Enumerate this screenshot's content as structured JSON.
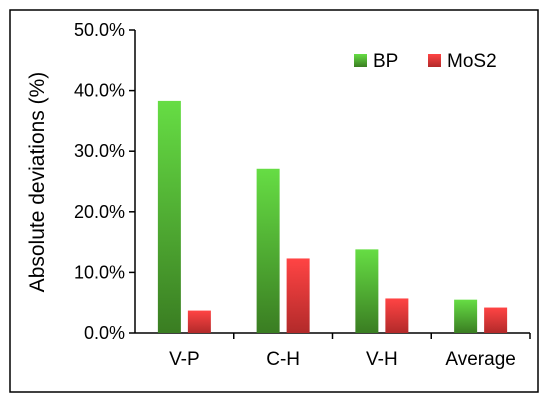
{
  "chart_data": {
    "type": "bar",
    "categories": [
      "V-P",
      "C-H",
      "V-H",
      "Average"
    ],
    "series": [
      {
        "name": "BP",
        "values": [
          0.383,
          0.271,
          0.138,
          0.055
        ],
        "color_top": "#66dd44",
        "color_bottom": "#3a7d22"
      },
      {
        "name": "MoS2",
        "values": [
          0.037,
          0.123,
          0.057,
          0.042
        ],
        "color_top": "#ff4444",
        "color_bottom": "#b22a2a"
      }
    ],
    "ylabel": "Absolute deviations (%)",
    "xlabel": "",
    "ylim": [
      0,
      0.5
    ],
    "yticks": [
      0,
      0.1,
      0.2,
      0.3,
      0.4,
      0.5
    ],
    "ytick_labels": [
      "0.0%",
      "10.0%",
      "20.0%",
      "30.0%",
      "40.0%",
      "50.0%"
    ],
    "legend_position": "top-right",
    "grid": false
  }
}
